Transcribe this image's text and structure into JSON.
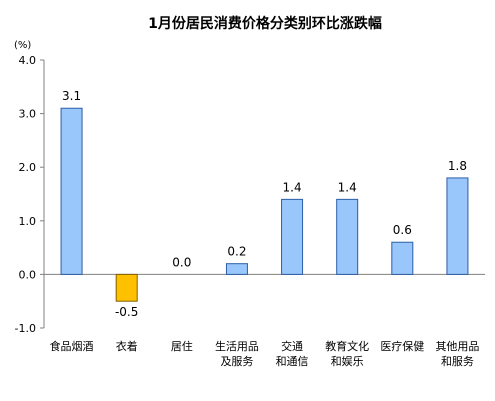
{
  "chart_data": {
    "type": "bar",
    "title": "1月份居民消费价格分类别环比涨跌幅",
    "unit_label": "(%)",
    "ylim": [
      -1.0,
      4.0
    ],
    "yticks": [
      "4.0",
      "3.0",
      "2.0",
      "1.0",
      "0.0",
      "-1.0"
    ],
    "categories": [
      [
        "食品烟酒"
      ],
      [
        "衣着"
      ],
      [
        "居住"
      ],
      [
        "生活用品",
        "及服务"
      ],
      [
        "交通",
        "和通信"
      ],
      [
        "教育文化",
        "和娱乐"
      ],
      [
        "医疗保健"
      ],
      [
        "其他用品",
        "和服务"
      ]
    ],
    "values": [
      3.1,
      -0.5,
      0.0,
      0.2,
      1.4,
      1.4,
      0.6,
      1.8
    ],
    "value_labels": [
      "3.1",
      "-0.5",
      "0.0",
      "0.2",
      "1.4",
      "1.4",
      "0.6",
      "1.8"
    ],
    "colors": {
      "positive_fill": "#99c7fb",
      "positive_stroke": "#2b5ea8",
      "negative_fill": "#ffc000",
      "negative_stroke": "#7f6000",
      "axis": "#808080"
    },
    "grid": false,
    "legend": "none"
  }
}
